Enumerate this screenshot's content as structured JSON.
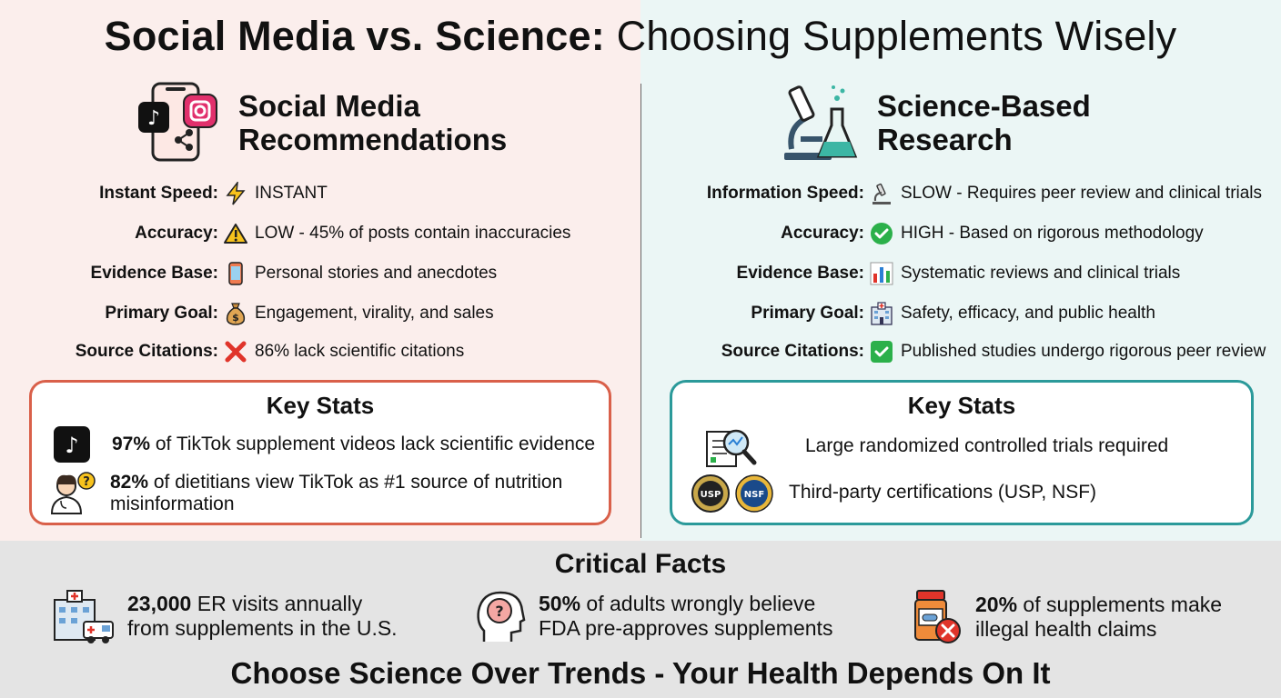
{
  "title": {
    "part1": "Social Media vs. Science:",
    "part2": "Choosing Supplements Wisely"
  },
  "left": {
    "heading_line1": "Social Media",
    "heading_line2": "Recommendations",
    "rows": [
      {
        "label": "Instant Speed:",
        "icon": "lightning-icon",
        "value": "INSTANT"
      },
      {
        "label": "Accuracy:",
        "icon": "warning-icon",
        "value": "LOW - 45% of posts contain inaccuracies"
      },
      {
        "label": "Evidence Base:",
        "icon": "phone-icon",
        "value": "Personal stories and anecdotes"
      },
      {
        "label": "Primary Goal:",
        "icon": "money-bag-icon",
        "value": "Engagement, virality, and sales"
      },
      {
        "label": "Source Citations:",
        "icon": "red-x-icon",
        "value": "86% lack scientific citations"
      }
    ],
    "stats": {
      "title": "Key Stats",
      "items": [
        {
          "bold": "97%",
          "text": " of TikTok supplement videos lack scientific evidence"
        },
        {
          "bold": "82%",
          "text": " of dietitians view TikTok as #1 source of nutrition misinformation"
        }
      ]
    }
  },
  "right": {
    "heading_line1": "Science-Based",
    "heading_line2": "Research",
    "rows": [
      {
        "label": "Information Speed:",
        "icon": "microscope-icon",
        "value": "SLOW - Requires peer review and clinical trials"
      },
      {
        "label": "Accuracy:",
        "icon": "green-check-circle-icon",
        "value": "HIGH - Based on rigorous methodology"
      },
      {
        "label": "Evidence Base:",
        "icon": "bar-chart-icon",
        "value": "Systematic reviews and clinical trials"
      },
      {
        "label": "Primary Goal:",
        "icon": "hospital-icon",
        "value": "Safety, efficacy, and public health"
      },
      {
        "label": "Source Citations:",
        "icon": "green-check-box-icon",
        "value": "Published studies undergo rigorous peer review"
      }
    ],
    "stats": {
      "title": "Key Stats",
      "items": [
        {
          "text": "Large randomized controlled trials required"
        },
        {
          "text": "Third-party certifications (USP, NSF)"
        }
      ],
      "badges": [
        "USP",
        "NSF"
      ]
    }
  },
  "critical": {
    "title": "Critical Facts",
    "facts": [
      {
        "bold": "23,000",
        "line1": " ER visits annually",
        "line2": "from supplements in the U.S."
      },
      {
        "bold": "50%",
        "line1": " of adults wrongly believe",
        "line2": "FDA pre-approves supplements"
      },
      {
        "bold": "20%",
        "line1": " of supplements make",
        "line2": "illegal health claims"
      }
    ]
  },
  "footer": "Choose Science Over Trends - Your Health Depends On It",
  "colors": {
    "left_bg": "#fbeeec",
    "right_bg": "#ebf6f5",
    "bottom_bg": "#e4e4e4",
    "left_accent": "#d9604a",
    "right_accent": "#2b9a9a"
  }
}
